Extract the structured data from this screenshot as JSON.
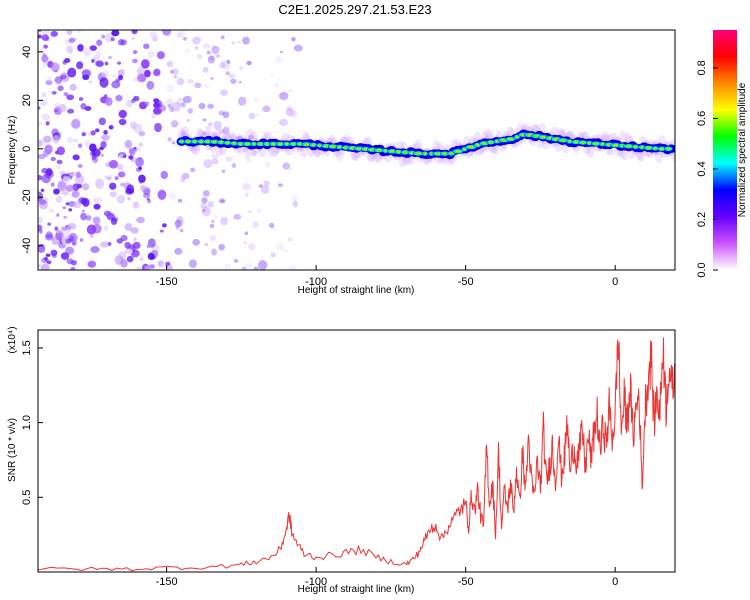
{
  "title": "C2E1.2025.297.21.53.E23",
  "chart_data": [
    {
      "type": "heatmap",
      "xlabel": "Height of straight line (km)",
      "ylabel": "Frequency (Hz)",
      "xlim": [
        -193,
        20
      ],
      "ylim": [
        -50,
        49
      ],
      "xticks": [
        -150,
        -100,
        -50,
        0
      ],
      "xtick_labels": [
        "-150",
        "-100",
        "-50",
        "0"
      ],
      "yticks": [
        -40,
        -20,
        0,
        20,
        40
      ],
      "ytick_labels": [
        "-40",
        "-20",
        "0",
        "20",
        "40"
      ],
      "grid": false,
      "ridge": {
        "name": "dominant frequency ridge",
        "x": [
          -145,
          -135,
          -125,
          -115,
          -105,
          -95,
          -85,
          -75,
          -65,
          -55,
          -45,
          -35,
          -30,
          -25,
          -15,
          -5,
          5,
          15,
          20
        ],
        "y": [
          3,
          3,
          2,
          2,
          2,
          1,
          0,
          -1,
          -2,
          -2,
          2,
          4,
          6,
          5,
          3,
          2,
          1,
          0,
          0
        ]
      },
      "noise_region": {
        "x_range": [
          -193,
          -120
        ],
        "y_range": [
          -50,
          49
        ]
      },
      "colorbar": {
        "label": "Normalized spectral amplitude",
        "range": [
          0,
          0.95
        ],
        "ticks": [
          0.0,
          0.2,
          0.4,
          0.6,
          0.8
        ],
        "tick_labels": [
          "0.0",
          "0.2",
          "0.4",
          "0.6",
          "0.8"
        ],
        "colors": [
          "#ffffff",
          "#cc55ff",
          "#6600ff",
          "#0000ff",
          "#00ffff",
          "#00ff00",
          "#ffff00",
          "#ff8800",
          "#ff0000",
          "#ff0077"
        ]
      }
    },
    {
      "type": "line",
      "xlabel": "Height of straight line (km)",
      "ylabel": "SNR (10 * v/v)",
      "y_multiplier": "(x10⁴)",
      "xlim": [
        -193,
        20
      ],
      "ylim": [
        0,
        1.62
      ],
      "xticks": [
        -150,
        -100,
        -50,
        0
      ],
      "xtick_labels": [
        "-150",
        "-100",
        "-50",
        "0"
      ],
      "yticks": [
        0.5,
        1.0,
        1.5
      ],
      "ytick_labels": [
        "0.5",
        "1.0",
        "1.5"
      ],
      "grid": false,
      "series": [
        {
          "color": "#ee3333",
          "x": [
            -193,
            -180,
            -170,
            -160,
            -150,
            -140,
            -130,
            -125,
            -120,
            -115,
            -112,
            -110,
            -109,
            -108,
            -106,
            -104,
            -100,
            -95,
            -90,
            -85,
            -80,
            -75,
            -70,
            -68,
            -66,
            -64,
            -62,
            -60,
            -58,
            -56,
            -54,
            -52,
            -50,
            -49,
            -48,
            -47,
            -46,
            -45,
            -44,
            -43,
            -42,
            -41,
            -40,
            -39,
            -38,
            -37,
            -36,
            -35,
            -34,
            -33,
            -32,
            -31,
            -30,
            -29,
            -28,
            -27,
            -26,
            -25,
            -24,
            -23,
            -22,
            -21,
            -20,
            -19,
            -18,
            -17,
            -16,
            -15,
            -14,
            -13,
            -12,
            -11,
            -10,
            -9,
            -8,
            -7,
            -6,
            -5,
            -4,
            -3,
            -2,
            -1,
            0,
            1,
            2,
            3,
            4,
            5,
            6,
            7,
            8,
            9,
            10,
            11,
            12,
            13,
            14,
            15,
            16,
            17,
            18,
            19,
            20
          ],
          "y": [
            0.02,
            0.02,
            0.02,
            0.02,
            0.03,
            0.03,
            0.04,
            0.05,
            0.07,
            0.1,
            0.15,
            0.28,
            0.38,
            0.25,
            0.18,
            0.12,
            0.1,
            0.11,
            0.13,
            0.15,
            0.1,
            0.07,
            0.05,
            0.08,
            0.12,
            0.2,
            0.28,
            0.32,
            0.22,
            0.3,
            0.35,
            0.42,
            0.45,
            0.3,
            0.52,
            0.4,
            0.55,
            0.38,
            0.3,
            0.85,
            0.45,
            0.6,
            0.25,
            0.8,
            0.3,
            0.55,
            0.42,
            0.6,
            0.4,
            0.7,
            0.45,
            0.8,
            0.55,
            0.9,
            0.6,
            0.5,
            0.75,
            0.55,
            0.95,
            0.6,
            0.7,
            0.85,
            0.6,
            0.9,
            0.65,
            0.75,
            1.0,
            0.65,
            0.85,
            0.75,
            0.8,
            0.95,
            0.7,
            0.9,
            0.75,
            0.95,
            1.05,
            0.8,
            1.0,
            0.85,
            1.1,
            0.9,
            1.05,
            1.6,
            0.95,
            1.15,
            1.0,
            1.25,
            0.9,
            1.1,
            1.2,
            0.55,
            1.1,
            1.3,
            1.45,
            1.0,
            1.2,
            1.05,
            1.55,
            1.1,
            1.4,
            1.2,
            1.35
          ]
        }
      ]
    }
  ]
}
